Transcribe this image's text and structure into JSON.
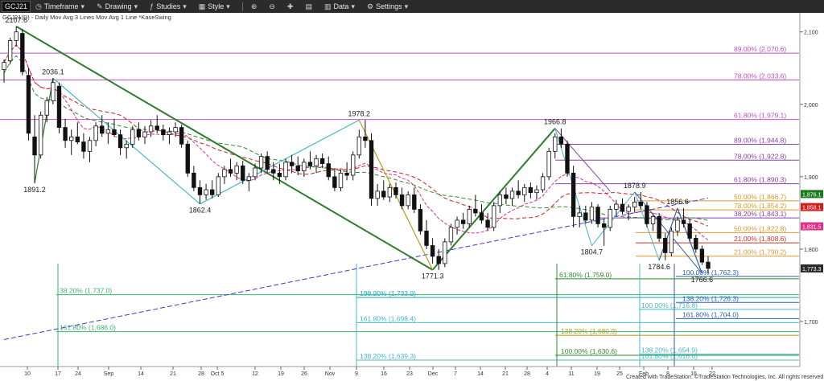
{
  "toolbar": {
    "symbol": "GCJ21",
    "items": [
      "Timeframe",
      "Drawing",
      "Studies",
      "Style",
      "Data",
      "Settings"
    ]
  },
  "chart_data": {
    "type": "candlestick",
    "header": "GCJ21(D) - Daily  Mov Avg 3 Lines  Mov Avg 1 Line  *KaseSwing",
    "copyright": "Created with TradeStation. ©TradeStation Technologies, Inc. All rights reserved.",
    "ylim": [
      1640,
      2113
    ],
    "y_ticks": [
      {
        "value": 2100,
        "label": "2,100"
      },
      {
        "value": 2000,
        "label": "2,000"
      },
      {
        "value": 1900,
        "label": "1,900"
      },
      {
        "value": 1800,
        "label": "1,800"
      },
      {
        "value": 1700,
        "label": "1,700"
      }
    ],
    "x_ticks": [
      "10",
      "17",
      "24",
      "Sep",
      "14",
      "21",
      "28",
      "Oct 5",
      "12",
      "19",
      "26",
      "Nov",
      "9",
      "16",
      "23",
      "Dec",
      "7",
      "14",
      "21",
      "28",
      "4",
      "11",
      "19",
      "25",
      "Feb",
      "8",
      "16",
      "22"
    ],
    "price_boxes": [
      {
        "label": "1,876.1",
        "value": 1876.1,
        "color": "#1e7a1e"
      },
      {
        "label": "1,858.1",
        "value": 1858.1,
        "color": "#d01f1f"
      },
      {
        "label": "1,831.5",
        "value": 1831.5,
        "color": "#e0308a"
      },
      {
        "label": "1,773.3",
        "value": 1773.3,
        "color": "#2b2b2b"
      }
    ],
    "swing_points": [
      {
        "label": "2107.6",
        "value": 2107.6
      },
      {
        "label": "2036.1",
        "value": 2036.1
      },
      {
        "label": "1891.2",
        "value": 1891.2
      },
      {
        "label": "1862.4",
        "value": 1862.4
      },
      {
        "label": "1978.2",
        "value": 1978.2
      },
      {
        "label": "1771.3",
        "value": 1771.3
      },
      {
        "label": "1966.8",
        "value": 1966.8
      },
      {
        "label": "1804.7",
        "value": 1804.7
      },
      {
        "label": "1878.9",
        "value": 1878.9
      },
      {
        "label": "1784.6",
        "value": 1784.6
      },
      {
        "label": "1856.6",
        "value": 1856.6
      },
      {
        "label": "1766.6",
        "value": 1766.6
      }
    ],
    "fib_levels": [
      {
        "label": "89.00% (2,070.6)",
        "value": 2070.6,
        "color": "#c04fc0"
      },
      {
        "label": "78.00% (2,033.6)",
        "value": 2033.6,
        "color": "#c04fc0"
      },
      {
        "label": "61.80% (1,979.1)",
        "value": 1979.1,
        "color": "#c04fc0"
      },
      {
        "label": "89.00% (1,944.8)",
        "value": 1944.8,
        "color": "#8a3fa8"
      },
      {
        "label": "78.00% (1,922.8)",
        "value": 1922.8,
        "color": "#8a3fa8"
      },
      {
        "label": "61.80% (1,890.3)",
        "value": 1890.3,
        "color": "#8a3fa8"
      },
      {
        "label": "50.00% (1,866.7)",
        "value": 1866.7,
        "color": "#d79a30"
      },
      {
        "label": "78.00% (1,854.2)",
        "value": 1854.2,
        "color": "#d79a30"
      },
      {
        "label": "38.20% (1,843.1)",
        "value": 1843.1,
        "color": "#8a3fa8"
      },
      {
        "label": "50.00% (1,822.8)",
        "value": 1822.8,
        "color": "#d79a30"
      },
      {
        "label": "21.00% (1,808.6)",
        "value": 1808.6,
        "color": "#c0392b"
      },
      {
        "label": "21.00% (1,790.2)",
        "value": 1790.2,
        "color": "#d79a30"
      },
      {
        "label": "100.00% (1,762.3)",
        "value": 1762.3,
        "color": "#2f5fa8"
      },
      {
        "label": "61.80% (1,759.0)",
        "value": 1759.0,
        "color": "#2e8b2e"
      },
      {
        "label": "38.20% (1,737.0)",
        "value": 1737.0,
        "color": "#3cb371"
      },
      {
        "label": "138.20% (1,733.2)",
        "value": 1733.2,
        "color": "#46b8c9"
      },
      {
        "label": "100.00% (1,733.0)",
        "value": 1733.0,
        "color": "#46b8c9"
      },
      {
        "label": "138.20% (1,726.3)",
        "value": 1726.3,
        "color": "#2f5fa8"
      },
      {
        "label": "100.00% (1,716.8)",
        "value": 1716.8,
        "color": "#46b8c9"
      },
      {
        "label": "161.80% (1,704.0)",
        "value": 1704.0,
        "color": "#2f5fa8"
      },
      {
        "label": "161.80% (1,698.4)",
        "value": 1698.4,
        "color": "#46b8c9"
      },
      {
        "label": "161.80% (1,686.0)",
        "value": 1686.0,
        "color": "#3cb371"
      },
      {
        "label": "138.20% (1,680.9)",
        "value": 1680.9,
        "color": "#b89a1e"
      },
      {
        "label": "138.20% (1,654.9)",
        "value": 1654.9,
        "color": "#46b8c9"
      },
      {
        "label": "138.20% (1,639.3)",
        "value": 1639.3,
        "color": "#46b8c9"
      },
      {
        "label": "100.00% (1,630.6)",
        "value": 1630.6,
        "color": "#2e8b2e"
      },
      {
        "label": "161.80% (1,616.6)",
        "value": 1616.6,
        "color": "#46b8c9"
      }
    ],
    "candles": [
      {
        "o": 2048,
        "h": 2062,
        "l": 2030,
        "c": 2058
      },
      {
        "o": 2060,
        "h": 2092,
        "l": 2055,
        "c": 2088
      },
      {
        "o": 2088,
        "h": 2107.6,
        "l": 2080,
        "c": 2100
      },
      {
        "o": 2098,
        "h": 2104,
        "l": 2040,
        "c": 2045
      },
      {
        "o": 2040,
        "h": 2050,
        "l": 1950,
        "c": 1960
      },
      {
        "o": 1955,
        "h": 1985,
        "l": 1891.2,
        "c": 1930
      },
      {
        "o": 1930,
        "h": 1990,
        "l": 1925,
        "c": 1985
      },
      {
        "o": 1985,
        "h": 2010,
        "l": 1975,
        "c": 2005
      },
      {
        "o": 2005,
        "h": 2036.1,
        "l": 2000,
        "c": 2030
      },
      {
        "o": 2025,
        "h": 2030,
        "l": 1960,
        "c": 1968
      },
      {
        "o": 1968,
        "h": 1980,
        "l": 1940,
        "c": 1950
      },
      {
        "o": 1950,
        "h": 1965,
        "l": 1930,
        "c": 1955
      },
      {
        "o": 1955,
        "h": 1975,
        "l": 1945,
        "c": 1948
      },
      {
        "o": 1948,
        "h": 1960,
        "l": 1925,
        "c": 1935
      },
      {
        "o": 1935,
        "h": 1955,
        "l": 1920,
        "c": 1950
      },
      {
        "o": 1950,
        "h": 1975,
        "l": 1942,
        "c": 1970
      },
      {
        "o": 1970,
        "h": 1985,
        "l": 1955,
        "c": 1960
      },
      {
        "o": 1960,
        "h": 1975,
        "l": 1945,
        "c": 1965
      },
      {
        "o": 1965,
        "h": 1980,
        "l": 1955,
        "c": 1958
      },
      {
        "o": 1958,
        "h": 1965,
        "l": 1930,
        "c": 1940
      },
      {
        "o": 1940,
        "h": 1950,
        "l": 1925,
        "c": 1945
      },
      {
        "o": 1945,
        "h": 1970,
        "l": 1940,
        "c": 1965
      },
      {
        "o": 1965,
        "h": 1975,
        "l": 1950,
        "c": 1955
      },
      {
        "o": 1955,
        "h": 1970,
        "l": 1945,
        "c": 1962
      },
      {
        "o": 1962,
        "h": 1978,
        "l": 1955,
        "c": 1970
      },
      {
        "o": 1970,
        "h": 1985,
        "l": 1960,
        "c": 1965
      },
      {
        "o": 1965,
        "h": 1972,
        "l": 1950,
        "c": 1958
      },
      {
        "o": 1958,
        "h": 1968,
        "l": 1945,
        "c": 1962
      },
      {
        "o": 1962,
        "h": 1975,
        "l": 1955,
        "c": 1968
      },
      {
        "o": 1968,
        "h": 1972,
        "l": 1940,
        "c": 1945
      },
      {
        "o": 1945,
        "h": 1950,
        "l": 1900,
        "c": 1905
      },
      {
        "o": 1905,
        "h": 1915,
        "l": 1880,
        "c": 1885
      },
      {
        "o": 1885,
        "h": 1895,
        "l": 1862.4,
        "c": 1875
      },
      {
        "o": 1875,
        "h": 1890,
        "l": 1868,
        "c": 1882
      },
      {
        "o": 1882,
        "h": 1895,
        "l": 1870,
        "c": 1875
      },
      {
        "o": 1875,
        "h": 1905,
        "l": 1872,
        "c": 1900
      },
      {
        "o": 1900,
        "h": 1915,
        "l": 1890,
        "c": 1910
      },
      {
        "o": 1910,
        "h": 1925,
        "l": 1900,
        "c": 1905
      },
      {
        "o": 1905,
        "h": 1920,
        "l": 1895,
        "c": 1915
      },
      {
        "o": 1915,
        "h": 1922,
        "l": 1890,
        "c": 1895
      },
      {
        "o": 1895,
        "h": 1905,
        "l": 1880,
        "c": 1900
      },
      {
        "o": 1900,
        "h": 1918,
        "l": 1895,
        "c": 1912
      },
      {
        "o": 1912,
        "h": 1932,
        "l": 1905,
        "c": 1928
      },
      {
        "o": 1928,
        "h": 1935,
        "l": 1905,
        "c": 1910
      },
      {
        "o": 1910,
        "h": 1920,
        "l": 1895,
        "c": 1905
      },
      {
        "o": 1905,
        "h": 1918,
        "l": 1890,
        "c": 1900
      },
      {
        "o": 1900,
        "h": 1925,
        "l": 1895,
        "c": 1920
      },
      {
        "o": 1920,
        "h": 1930,
        "l": 1905,
        "c": 1915
      },
      {
        "o": 1915,
        "h": 1928,
        "l": 1902,
        "c": 1908
      },
      {
        "o": 1908,
        "h": 1925,
        "l": 1900,
        "c": 1920
      },
      {
        "o": 1920,
        "h": 1935,
        "l": 1910,
        "c": 1915
      },
      {
        "o": 1915,
        "h": 1930,
        "l": 1905,
        "c": 1925
      },
      {
        "o": 1925,
        "h": 1932,
        "l": 1912,
        "c": 1918
      },
      {
        "o": 1918,
        "h": 1928,
        "l": 1895,
        "c": 1900
      },
      {
        "o": 1900,
        "h": 1912,
        "l": 1880,
        "c": 1885
      },
      {
        "o": 1885,
        "h": 1910,
        "l": 1880,
        "c": 1905
      },
      {
        "o": 1905,
        "h": 1920,
        "l": 1895,
        "c": 1902
      },
      {
        "o": 1902,
        "h": 1935,
        "l": 1895,
        "c": 1930
      },
      {
        "o": 1930,
        "h": 1965,
        "l": 1925,
        "c": 1955
      },
      {
        "o": 1955,
        "h": 1978.2,
        "l": 1940,
        "c": 1950
      },
      {
        "o": 1950,
        "h": 1960,
        "l": 1860,
        "c": 1870
      },
      {
        "o": 1870,
        "h": 1890,
        "l": 1860,
        "c": 1880
      },
      {
        "o": 1880,
        "h": 1895,
        "l": 1868,
        "c": 1872
      },
      {
        "o": 1872,
        "h": 1890,
        "l": 1865,
        "c": 1885
      },
      {
        "o": 1885,
        "h": 1892,
        "l": 1870,
        "c": 1875
      },
      {
        "o": 1875,
        "h": 1885,
        "l": 1855,
        "c": 1860
      },
      {
        "o": 1860,
        "h": 1880,
        "l": 1855,
        "c": 1875
      },
      {
        "o": 1875,
        "h": 1885,
        "l": 1850,
        "c": 1855
      },
      {
        "o": 1855,
        "h": 1862,
        "l": 1820,
        "c": 1825
      },
      {
        "o": 1825,
        "h": 1840,
        "l": 1800,
        "c": 1805
      },
      {
        "o": 1805,
        "h": 1815,
        "l": 1780,
        "c": 1790
      },
      {
        "o": 1790,
        "h": 1800,
        "l": 1771.3,
        "c": 1780
      },
      {
        "o": 1780,
        "h": 1815,
        "l": 1775,
        "c": 1810
      },
      {
        "o": 1810,
        "h": 1835,
        "l": 1805,
        "c": 1830
      },
      {
        "o": 1830,
        "h": 1845,
        "l": 1820,
        "c": 1840
      },
      {
        "o": 1840,
        "h": 1850,
        "l": 1828,
        "c": 1835
      },
      {
        "o": 1835,
        "h": 1860,
        "l": 1830,
        "c": 1855
      },
      {
        "o": 1855,
        "h": 1875,
        "l": 1845,
        "c": 1850
      },
      {
        "o": 1850,
        "h": 1862,
        "l": 1835,
        "c": 1840
      },
      {
        "o": 1840,
        "h": 1850,
        "l": 1825,
        "c": 1830
      },
      {
        "o": 1830,
        "h": 1865,
        "l": 1825,
        "c": 1860
      },
      {
        "o": 1860,
        "h": 1880,
        "l": 1850,
        "c": 1875
      },
      {
        "o": 1875,
        "h": 1885,
        "l": 1862,
        "c": 1870
      },
      {
        "o": 1870,
        "h": 1885,
        "l": 1860,
        "c": 1880
      },
      {
        "o": 1880,
        "h": 1895,
        "l": 1870,
        "c": 1875
      },
      {
        "o": 1875,
        "h": 1890,
        "l": 1865,
        "c": 1885
      },
      {
        "o": 1885,
        "h": 1892,
        "l": 1870,
        "c": 1878
      },
      {
        "o": 1878,
        "h": 1888,
        "l": 1868,
        "c": 1882
      },
      {
        "o": 1882,
        "h": 1905,
        "l": 1878,
        "c": 1900
      },
      {
        "o": 1900,
        "h": 1940,
        "l": 1895,
        "c": 1935
      },
      {
        "o": 1935,
        "h": 1960,
        "l": 1925,
        "c": 1955
      },
      {
        "o": 1955,
        "h": 1966.8,
        "l": 1940,
        "c": 1945
      },
      {
        "o": 1945,
        "h": 1950,
        "l": 1900,
        "c": 1905
      },
      {
        "o": 1905,
        "h": 1915,
        "l": 1830,
        "c": 1845
      },
      {
        "o": 1845,
        "h": 1860,
        "l": 1830,
        "c": 1850
      },
      {
        "o": 1850,
        "h": 1860,
        "l": 1835,
        "c": 1840
      },
      {
        "o": 1840,
        "h": 1865,
        "l": 1835,
        "c": 1858
      },
      {
        "o": 1858,
        "h": 1862,
        "l": 1830,
        "c": 1835
      },
      {
        "o": 1835,
        "h": 1842,
        "l": 1804.7,
        "c": 1830
      },
      {
        "o": 1830,
        "h": 1860,
        "l": 1825,
        "c": 1855
      },
      {
        "o": 1855,
        "h": 1868,
        "l": 1845,
        "c": 1862
      },
      {
        "o": 1862,
        "h": 1870,
        "l": 1848,
        "c": 1852
      },
      {
        "o": 1852,
        "h": 1862,
        "l": 1840,
        "c": 1858
      },
      {
        "o": 1858,
        "h": 1872,
        "l": 1850,
        "c": 1865
      },
      {
        "o": 1865,
        "h": 1878.9,
        "l": 1855,
        "c": 1860
      },
      {
        "o": 1860,
        "h": 1865,
        "l": 1830,
        "c": 1835
      },
      {
        "o": 1835,
        "h": 1850,
        "l": 1825,
        "c": 1845
      },
      {
        "o": 1845,
        "h": 1850,
        "l": 1810,
        "c": 1815
      },
      {
        "o": 1815,
        "h": 1822,
        "l": 1784.6,
        "c": 1795
      },
      {
        "o": 1795,
        "h": 1830,
        "l": 1790,
        "c": 1825
      },
      {
        "o": 1825,
        "h": 1845,
        "l": 1818,
        "c": 1840
      },
      {
        "o": 1840,
        "h": 1856.6,
        "l": 1830,
        "c": 1835
      },
      {
        "o": 1835,
        "h": 1842,
        "l": 1810,
        "c": 1815
      },
      {
        "o": 1815,
        "h": 1820,
        "l": 1795,
        "c": 1800
      },
      {
        "o": 1800,
        "h": 1805,
        "l": 1778,
        "c": 1782
      },
      {
        "o": 1782,
        "h": 1790,
        "l": 1766.6,
        "c": 1773.3
      }
    ]
  }
}
